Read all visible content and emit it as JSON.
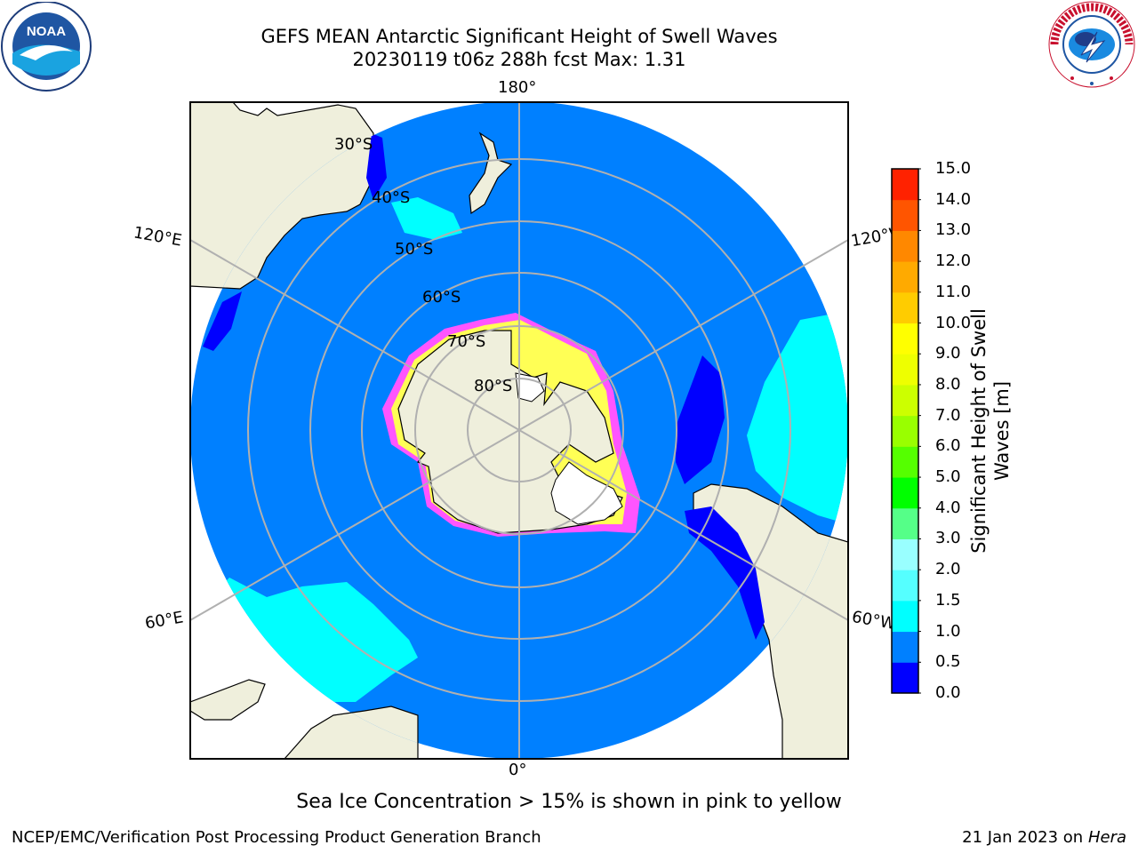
{
  "header": {
    "title_line1": "GEFS MEAN Antarctic Significant Height of Swell Waves",
    "title_line2": "20230119 t06z 288h fcst   Max: 1.31"
  },
  "logos": {
    "left": {
      "icon": "noaa-logo",
      "text": "NOAA"
    },
    "right": {
      "icon": "national-weather-service-logo",
      "text": "NATIONAL WEATHER SERVICE"
    }
  },
  "map": {
    "projection": "south-polar-stereographic",
    "longitude_labels": {
      "top": "180°",
      "bottom": "0°",
      "left_upper": "120°E",
      "left_lower": "60°E",
      "right_upper": "120°W",
      "right_lower": "60°W"
    },
    "latitude_labels": [
      "30°S",
      "40°S",
      "50°S",
      "60°S",
      "70°S",
      "80°S"
    ],
    "colors": {
      "ocean_0_5_1_0": "#0080ff",
      "ocean_1_0_1_5": "#00ffff",
      "ocean_0_0_0_5": "#0000ff",
      "land": "#efefdc",
      "sea_ice_low": "#ff55ff",
      "sea_ice_high": "#ffff55",
      "graticule": "#b0b0b0"
    }
  },
  "colorbar": {
    "title": "Significant Height of Swell Waves [m]",
    "title_line1": "Significant Height of Swell",
    "title_line2": "Waves [m]",
    "ticks": [
      "15.0",
      "14.0",
      "13.0",
      "12.0",
      "11.0",
      "10.0",
      "9.0",
      "8.0",
      "7.0",
      "6.0",
      "5.0",
      "4.0",
      "3.0",
      "2.0",
      "1.5",
      "1.0",
      "0.5",
      "0.0"
    ],
    "colors": [
      "#0000ff",
      "#0080ff",
      "#00ffff",
      "#55ffff",
      "#99ffff",
      "#55ff88",
      "#00ff00",
      "#55ff00",
      "#99ff00",
      "#ccff00",
      "#eeff00",
      "#ffff00",
      "#ffcc00",
      "#ffaa00",
      "#ff8800",
      "#ff5500",
      "#ff2200"
    ]
  },
  "note": "Sea Ice Concentration > 15% is shown in pink to yellow",
  "footer": {
    "left": "NCEP/EMC/Verification Post Processing Product Generation Branch",
    "right_prefix": "21 Jan 2023 on ",
    "right_host": "Hera"
  }
}
